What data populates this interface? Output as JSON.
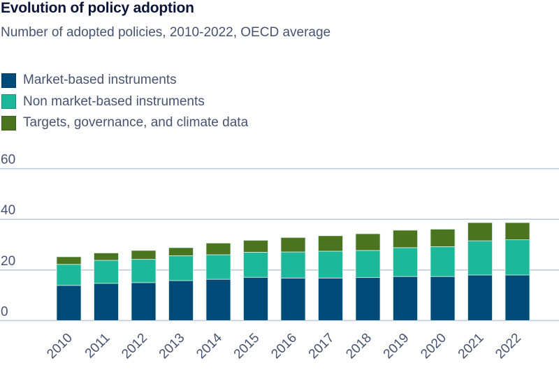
{
  "header": {
    "title": "Evolution of policy adoption",
    "subtitle": "Number of adopted policies, 2010-2022, OECD average"
  },
  "chart_data": {
    "type": "bar",
    "stacked": true,
    "title": "Evolution of policy adoption",
    "subtitle": "Number of adopted policies, 2010-2022, OECD average",
    "xlabel": "",
    "ylabel": "",
    "ylim": [
      0,
      60
    ],
    "yticks": [
      0,
      20,
      40,
      60
    ],
    "grid": true,
    "legend_position": "top-left",
    "categories": [
      "2010",
      "2011",
      "2012",
      "2013",
      "2014",
      "2015",
      "2016",
      "2017",
      "2018",
      "2019",
      "2020",
      "2021",
      "2022"
    ],
    "series": [
      {
        "name": "Market-based instruments",
        "color": "#004a78",
        "values": [
          13.9,
          14.7,
          15.0,
          15.8,
          16.3,
          17.1,
          16.8,
          16.8,
          17.0,
          17.4,
          17.4,
          18.0,
          18.0
        ]
      },
      {
        "name": "Non market-based instruments",
        "color": "#1db899",
        "values": [
          8.3,
          9.1,
          9.2,
          9.8,
          9.7,
          9.9,
          10.3,
          10.6,
          10.7,
          11.4,
          11.8,
          13.5,
          13.9
        ]
      },
      {
        "name": "Targets, governance, and climate data",
        "color": "#4c7420",
        "values": [
          3.0,
          2.9,
          3.5,
          3.2,
          4.6,
          4.7,
          5.7,
          6.1,
          6.6,
          6.9,
          6.9,
          7.2,
          6.8
        ]
      }
    ],
    "gridline_color": "#c3ccd8",
    "text_color": "#47536f"
  }
}
